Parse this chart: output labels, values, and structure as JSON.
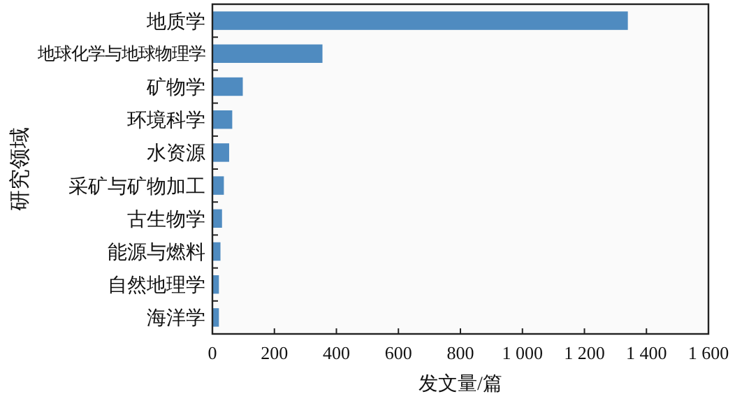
{
  "chart_data": {
    "type": "bar",
    "orientation": "horizontal",
    "xlabel": "发文量/篇",
    "ylabel": "研究领域",
    "categories": [
      "地质学",
      "地球化学与地球物理学",
      "矿物学",
      "环境科学",
      "水资源",
      "采矿与矿物加工",
      "古生物学",
      "能源与燃料",
      "自然地理学",
      "海洋学"
    ],
    "values": [
      1340,
      355,
      98,
      64,
      54,
      37,
      31,
      26,
      21,
      21
    ],
    "color": "#4f8bc0",
    "xlim": [
      0,
      1600
    ],
    "xticks": [
      0,
      200,
      400,
      600,
      800,
      {
        "value": 1000,
        "label": "1 000"
      },
      {
        "value": 1200,
        "label": "1 200"
      },
      {
        "value": 1400,
        "label": "1 400"
      },
      {
        "value": 1600,
        "label": "1 600"
      }
    ],
    "grid": false
  }
}
